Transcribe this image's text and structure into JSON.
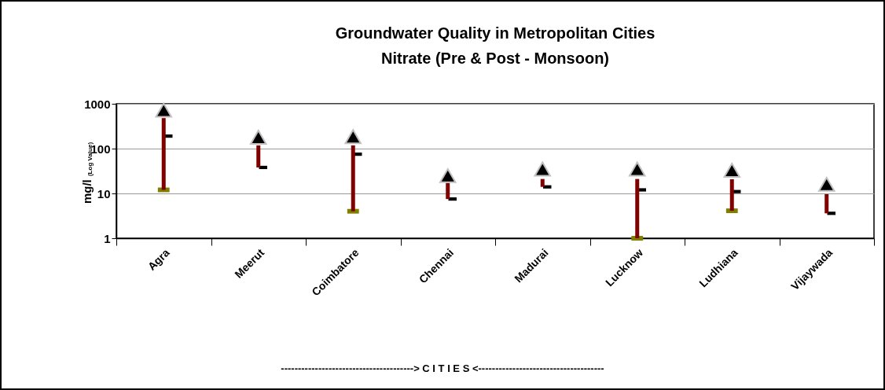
{
  "chart_data": {
    "type": "scatter",
    "title": "Groundwater Quality in Metropolitan Cities",
    "subtitle": "Nitrate (Pre & Post - Monsoon)",
    "annotations": [
      "---------------------------------------> C I T I E S <-------------------------------------"
    ],
    "ylabel": "mg/l $_{(Log Value)}$",
    "categories": [
      "Agra",
      "Meerut",
      "Coimbatore",
      "Chennai",
      "Madurai",
      "Lucknow",
      "Ludhiana",
      "Vijaywada"
    ],
    "log": true,
    "ylim": [
      1,
      1000
    ],
    "yticks": [
      1,
      10,
      100,
      1000
    ],
    "grid": "y",
    "series": [
      {
        "marker": "triangle",
        "color": "#000000",
        "values": [
          720,
          180,
          185,
          25,
          35,
          35,
          33,
          16
        ]
      },
      {
        "marker": "square",
        "color": "#808000",
        "values": [
          12,
          null,
          4,
          null,
          null,
          1,
          4.1,
          null
        ]
      },
      {
        "marker": "square",
        "color": "#000000",
        "values": [
          190,
          38,
          75,
          7.5,
          14,
          12,
          11,
          3.6
        ]
      },
      {
        "type": "bar",
        "color": "#800000",
        "base": [
          12,
          38,
          4,
          7.5,
          14,
          1,
          4.1,
          3.6
        ],
        "values": [
          468,
          80,
          114,
          9.5,
          7,
          20,
          16.6,
          6
        ]
      }
    ]
  }
}
